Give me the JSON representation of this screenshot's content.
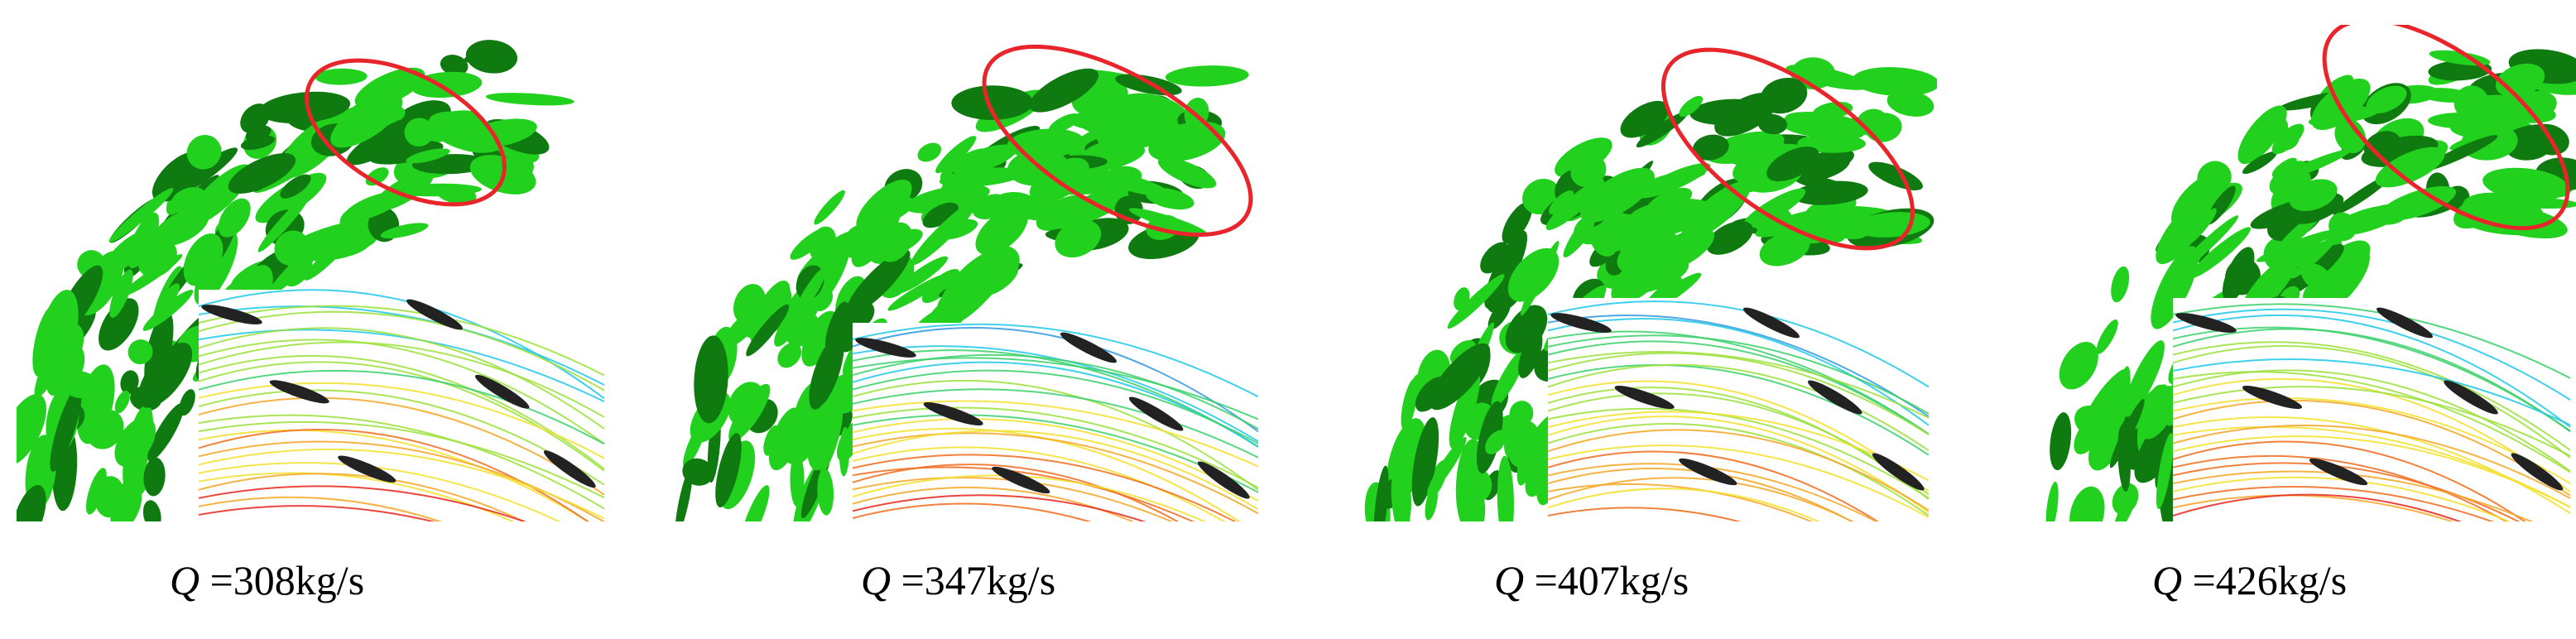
{
  "panels": [
    {
      "id": "p1",
      "caption_var": "Q",
      "caption_value": " =308kg/s"
    },
    {
      "id": "p2",
      "caption_var": "Q",
      "caption_value": " =347kg/s"
    },
    {
      "id": "p3",
      "caption_var": "Q",
      "caption_value": " =407kg/s"
    },
    {
      "id": "p4",
      "caption_var": "Q",
      "caption_value": " =426kg/s"
    }
  ],
  "colors": {
    "vortex_green": "#22d11e",
    "vortex_dark": "#0e7a10",
    "highlight_ellipse": "#e8252b",
    "blade": "#222222",
    "streamline_hot": "#e8261b",
    "streamline_cool": "#20c8e8"
  }
}
